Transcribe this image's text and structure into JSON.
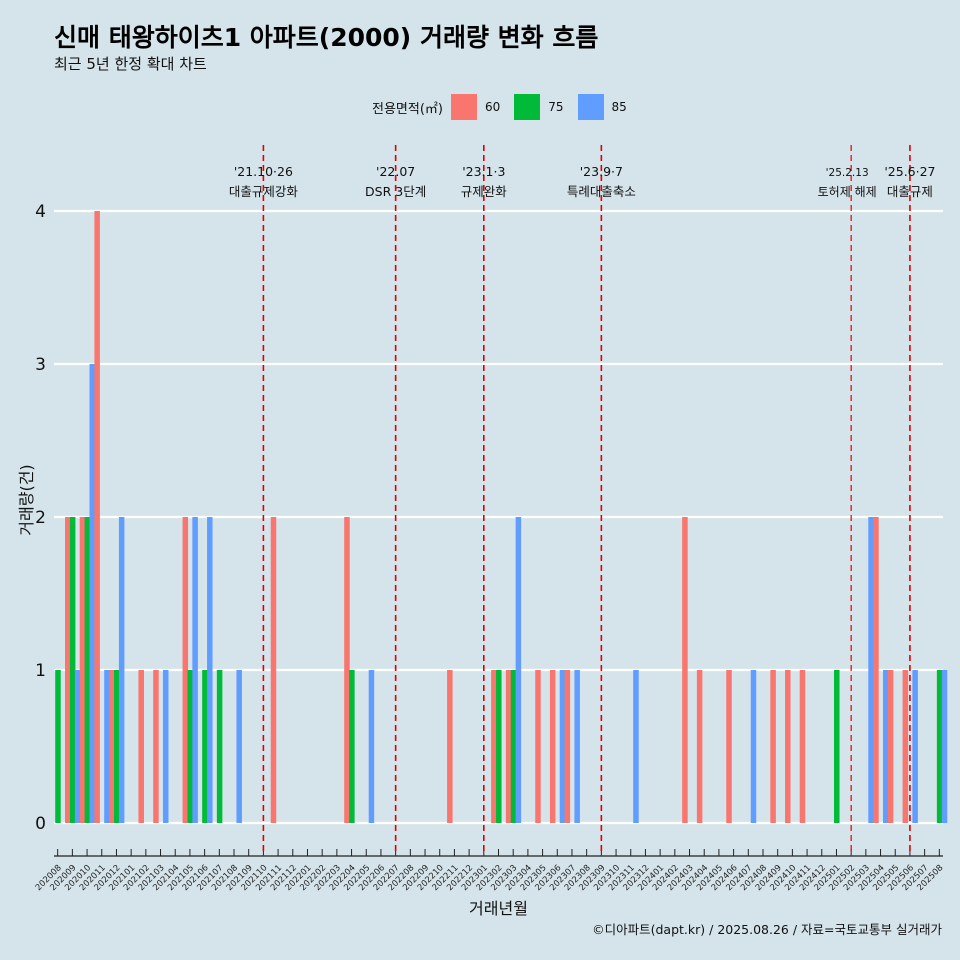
{
  "title": "신매 태왕하이츠1 아파트(2000) 거래량 변화 흐름",
  "subtitle": "최근 5년 한정 확대 차트",
  "caption": "©디아파트(dapt.kr) / 2025.08.26 / 자료=국토교통부 실거래가",
  "legend": {
    "title": "전용면적(㎡)",
    "items": [
      {
        "label": "60",
        "color": "#F8766D"
      },
      {
        "label": "75",
        "color": "#00BA38"
      },
      {
        "label": "85",
        "color": "#619CFF"
      }
    ]
  },
  "chart_data": {
    "type": "bar",
    "title": "신매 태왕하이츠1 아파트(2000) 거래량 변화 흐름",
    "subtitle": "최근 5년 한정 확대 차트",
    "xlabel": "거래년월",
    "ylabel": "거래량(건)",
    "ylim": [
      0,
      4
    ],
    "yticks": [
      0,
      1,
      2,
      3,
      4
    ],
    "categories": [
      "202008",
      "202009",
      "202010",
      "202011",
      "202012",
      "202101",
      "202102",
      "202103",
      "202104",
      "202105",
      "202106",
      "202107",
      "202108",
      "202109",
      "202110",
      "202111",
      "202112",
      "202201",
      "202202",
      "202203",
      "202204",
      "202205",
      "202206",
      "202207",
      "202208",
      "202209",
      "202210",
      "202211",
      "202212",
      "202301",
      "202302",
      "202303",
      "202304",
      "202305",
      "202306",
      "202307",
      "202308",
      "202309",
      "202310",
      "202311",
      "202312",
      "202401",
      "202402",
      "202403",
      "202404",
      "202405",
      "202406",
      "202407",
      "202408",
      "202409",
      "202410",
      "202411",
      "202412",
      "202501",
      "202502",
      "202503",
      "202504",
      "202505",
      "202506",
      "202507",
      "202508"
    ],
    "series": [
      {
        "name": "60",
        "color": "#F8766D",
        "values": [
          0,
          2,
          2,
          4,
          1,
          0,
          1,
          1,
          0,
          2,
          0,
          0,
          0,
          0,
          0,
          2,
          0,
          0,
          0,
          0,
          2,
          0,
          0,
          0,
          0,
          0,
          0,
          1,
          0,
          0,
          1,
          1,
          0,
          1,
          1,
          1,
          0,
          0,
          0,
          0,
          0,
          0,
          0,
          2,
          1,
          0,
          1,
          0,
          0,
          1,
          1,
          1,
          0,
          0,
          0,
          0,
          2,
          1,
          1,
          0,
          0
        ]
      },
      {
        "name": "75",
        "color": "#00BA38",
        "values": [
          1,
          2,
          2,
          0,
          1,
          0,
          0,
          0,
          0,
          1,
          1,
          1,
          0,
          0,
          0,
          0,
          0,
          0,
          0,
          0,
          1,
          0,
          0,
          0,
          0,
          0,
          0,
          0,
          0,
          0,
          1,
          1,
          0,
          0,
          0,
          0,
          0,
          0,
          0,
          0,
          0,
          0,
          0,
          0,
          0,
          0,
          0,
          0,
          0,
          0,
          0,
          0,
          0,
          1,
          0,
          0,
          0,
          0,
          0,
          0,
          1
        ]
      },
      {
        "name": "85",
        "color": "#619CFF",
        "values": [
          0,
          1,
          3,
          1,
          2,
          0,
          0,
          1,
          0,
          2,
          2,
          0,
          1,
          0,
          0,
          0,
          0,
          0,
          0,
          0,
          0,
          1,
          0,
          0,
          0,
          0,
          0,
          0,
          0,
          0,
          0,
          2,
          0,
          0,
          1,
          1,
          0,
          0,
          0,
          1,
          0,
          0,
          0,
          0,
          0,
          0,
          0,
          1,
          0,
          0,
          0,
          0,
          0,
          0,
          0,
          2,
          1,
          0,
          1,
          0,
          1
        ]
      }
    ],
    "annotations": [
      {
        "date": "'21.10·26",
        "label": "대출규제강화",
        "x": "202110"
      },
      {
        "date": "'22.07",
        "label": "DSR 3단계",
        "x": "202207"
      },
      {
        "date": "'23.1·3",
        "label": "규제완화",
        "x": "202301"
      },
      {
        "date": "'23.9·7",
        "label": "특례대출축소",
        "x": "202309"
      },
      {
        "date": "'25.2.13",
        "label": "토허제 해제",
        "x": "202502"
      },
      {
        "date": "'25.6·27",
        "label": "대출규제",
        "x": "202506"
      }
    ],
    "grid": true,
    "legend_position": "top"
  }
}
